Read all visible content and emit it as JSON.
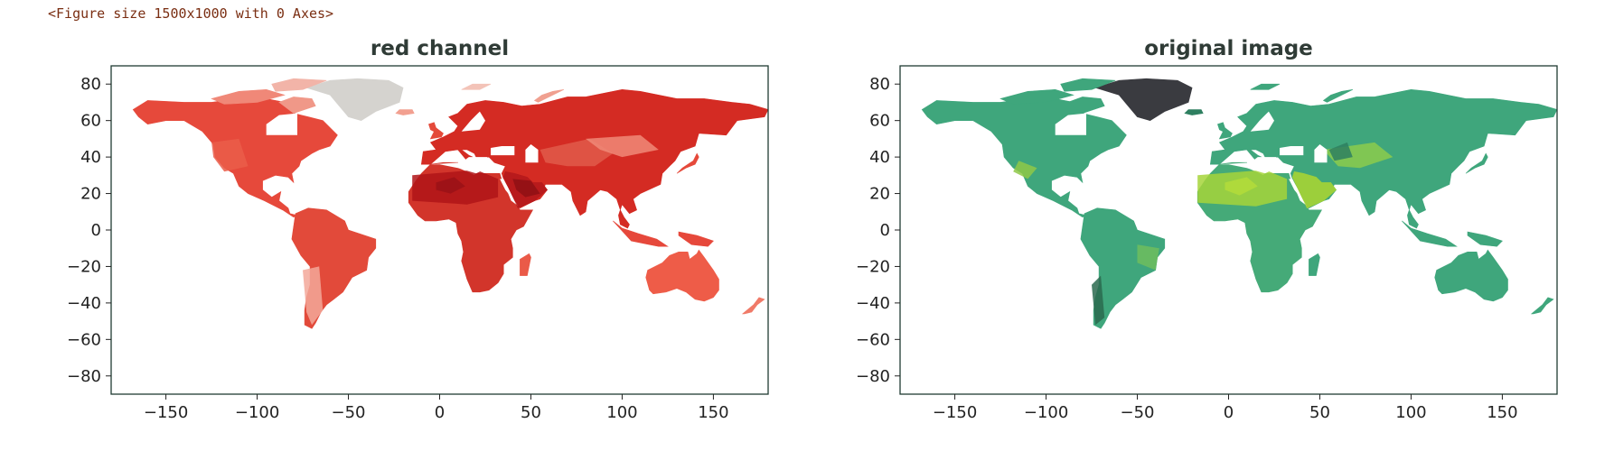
{
  "output_text": "<Figure size 1500x1000 with 0 Axes>",
  "chart_data": [
    {
      "type": "heatmap",
      "title": "red channel",
      "xlabel": "",
      "ylabel": "",
      "xlim": [
        -180,
        180
      ],
      "ylim": [
        -90,
        90
      ],
      "xticks": [
        -150,
        -100,
        -50,
        0,
        50,
        100,
        150
      ],
      "yticks": [
        80,
        60,
        40,
        20,
        0,
        -20,
        -40,
        -60,
        -80
      ],
      "xtick_labels": [
        "−150",
        "−100",
        "−50",
        "0",
        "50",
        "100",
        "150"
      ],
      "ytick_labels": [
        "80",
        "60",
        "40",
        "20",
        "0",
        "−20",
        "−40",
        "−60",
        "−80"
      ],
      "grid": false,
      "content": "world map of land pixels, red channel rendered with a red colormap",
      "colors": {
        "low": "#f6b3a4",
        "mid": "#e8473a",
        "high": "#8e1014",
        "ice": "#d5d3cf"
      }
    },
    {
      "type": "heatmap",
      "title": "original image",
      "xlabel": "",
      "ylabel": "",
      "xlim": [
        -180,
        180
      ],
      "ylim": [
        -90,
        90
      ],
      "xticks": [
        -150,
        -100,
        -50,
        0,
        50,
        100,
        150
      ],
      "yticks": [
        80,
        60,
        40,
        20,
        0,
        -20,
        -40,
        -60,
        -80
      ],
      "xtick_labels": [
        "−150",
        "−100",
        "−50",
        "0",
        "50",
        "100",
        "150"
      ],
      "ytick_labels": [
        "80",
        "60",
        "40",
        "20",
        "0",
        "−20",
        "−40",
        "−60",
        "−80"
      ],
      "grid": false,
      "content": "world map of land pixels, original colors",
      "colors": {
        "base": "#3fa67c",
        "desert": "#a6d53a",
        "ice": "#3a3b40",
        "dark": "#2e7f60"
      }
    }
  ]
}
